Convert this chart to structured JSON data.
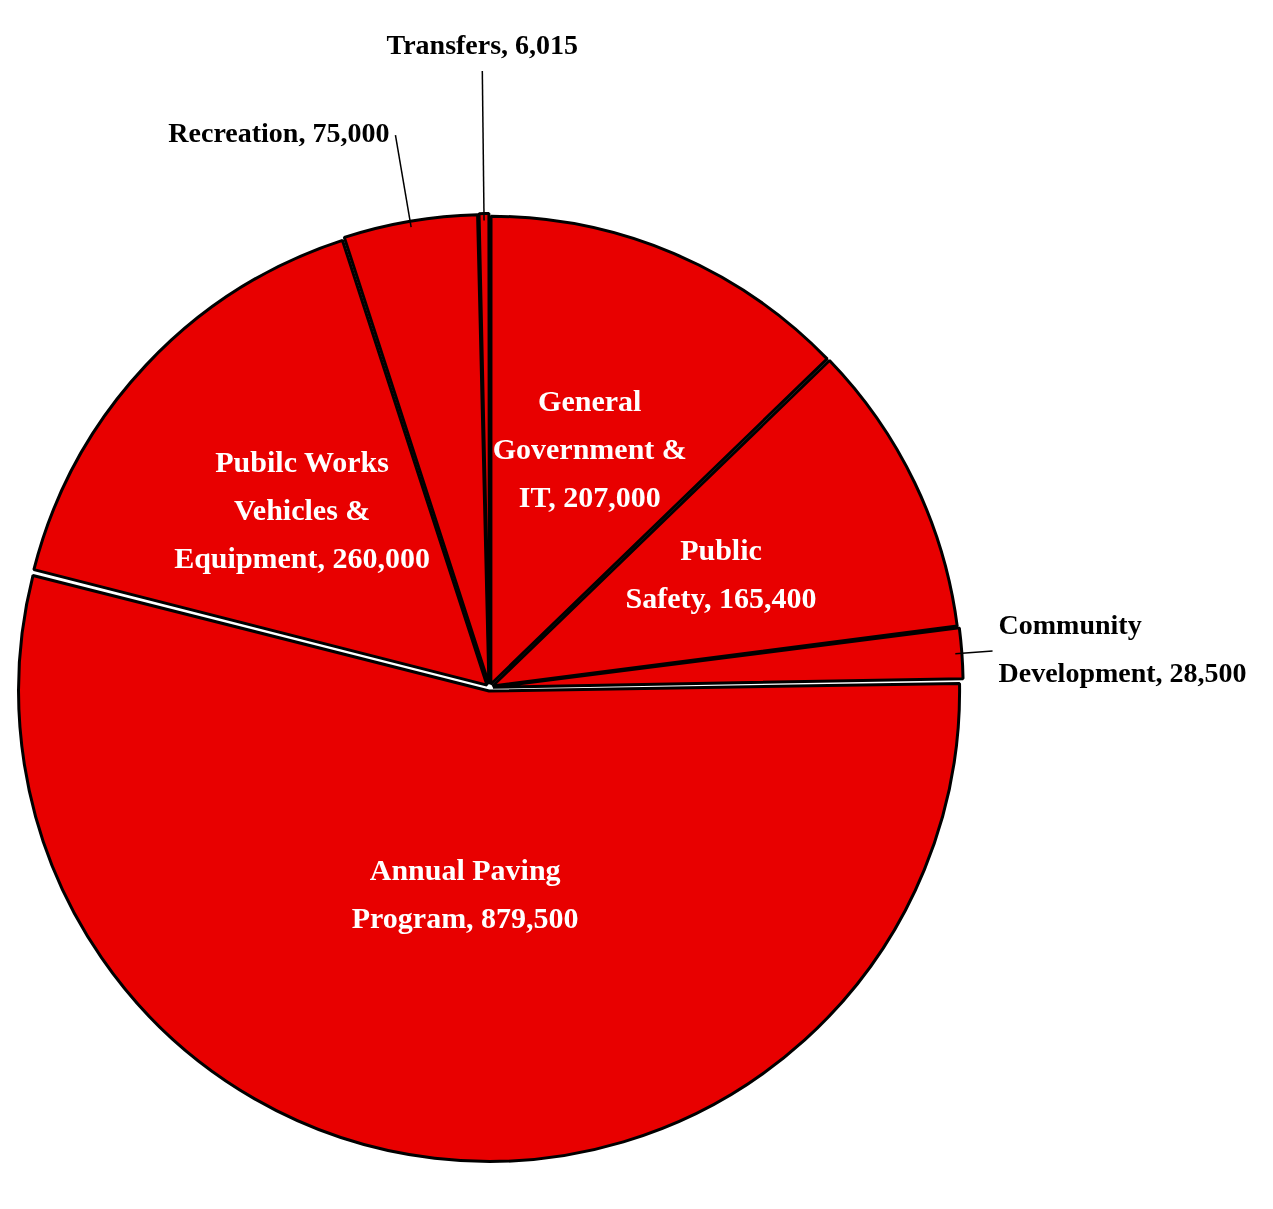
{
  "chart_data": {
    "type": "pie",
    "categories": [
      "General Government & IT",
      "Public Safety",
      "Community Development",
      "Annual Paving Program",
      "Pubilc Works Vehicles & Equipment",
      "Recreation",
      "Transfers"
    ],
    "values": [
      207000,
      165400,
      28500,
      879500,
      260000,
      75000,
      6015
    ],
    "value_labels": [
      "207,000",
      "165,400",
      "28,500",
      "879,500",
      "260,000",
      "75,000",
      "6,015"
    ],
    "colors": [
      "#e80000",
      "#e80000",
      "#e80000",
      "#e80000",
      "#e80000",
      "#e80000",
      "#e80000"
    ]
  }
}
